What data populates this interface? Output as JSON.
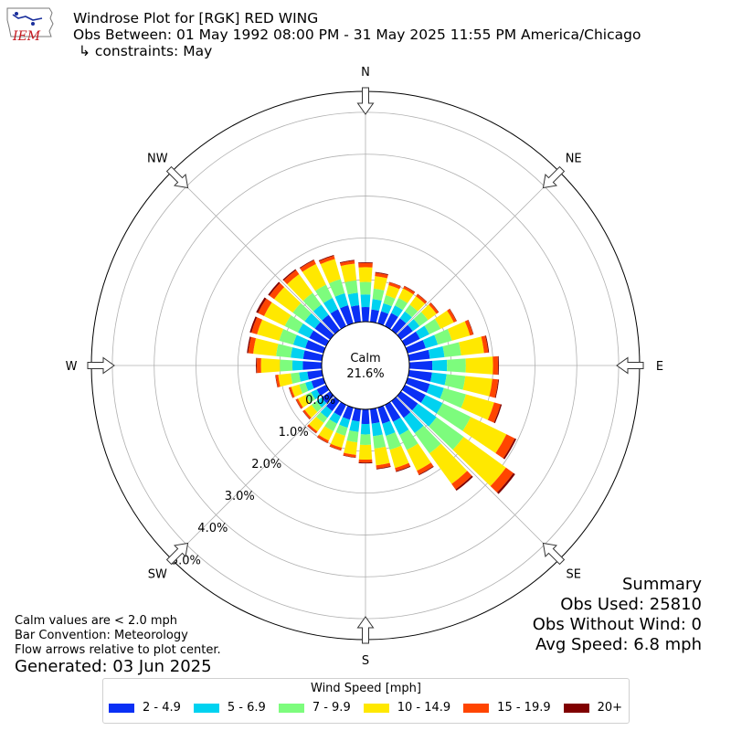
{
  "header": {
    "title": "Windrose Plot for [RGK] RED WING",
    "obs_between": "Obs Between: 01 May 1992 08:00 PM - 31 May 2025 11:55 PM America/Chicago",
    "constraints": "↳ constraints: May"
  },
  "logo": {
    "text": "IEM",
    "color": "#c4161c",
    "icon": "iowa-state-outline-logo"
  },
  "summary": {
    "title": "Summary",
    "obs_used": "Obs Used: 25810",
    "obs_without_wind": "Obs Without Wind: 0",
    "avg_speed": "Avg Speed: 6.8 mph"
  },
  "notes": {
    "calm": "Calm values are < 2.0 mph",
    "bar_convention": "Bar Convention: Meteorology",
    "flow_arrows": "Flow arrows relative to plot center.",
    "generated": "Generated: 03 Jun 2025"
  },
  "legend": {
    "title": "Wind Speed [mph]",
    "items": [
      {
        "label": "2 - 4.9",
        "color": "#0a30f5"
      },
      {
        "label": "5 - 6.9",
        "color": "#00d2f0"
      },
      {
        "label": "7 - 9.9",
        "color": "#7dfc7d"
      },
      {
        "label": "10 - 14.9",
        "color": "#ffe800"
      },
      {
        "label": "15 - 19.9",
        "color": "#ff4500"
      },
      {
        "label": "20+",
        "color": "#800000"
      }
    ]
  },
  "chart_data": {
    "type": "windrose",
    "calm_label": "Calm",
    "calm_value": "21.6%",
    "radial_unit": "percent",
    "radial_tick_labels": [
      "0.0%",
      "1.0%",
      "2.0%",
      "3.0%",
      "4.0%",
      "5.0%"
    ],
    "radial_ticks": [
      0,
      1,
      2,
      3,
      4,
      5
    ],
    "radial_max": 5.5,
    "directions": [
      "N",
      "NE",
      "E",
      "SE",
      "S",
      "SW",
      "W",
      "NW"
    ],
    "bin_directions_deg": [
      0,
      10,
      20,
      30,
      40,
      50,
      60,
      70,
      80,
      90,
      100,
      110,
      120,
      130,
      140,
      150,
      160,
      170,
      180,
      190,
      200,
      210,
      220,
      230,
      240,
      250,
      260,
      270,
      280,
      290,
      300,
      310,
      320,
      330,
      340,
      350
    ],
    "series": [
      {
        "name": "2 - 4.9",
        "values": [
          0.35,
          0.3,
          0.3,
          0.35,
          0.35,
          0.35,
          0.4,
          0.45,
          0.5,
          0.55,
          0.55,
          0.55,
          0.55,
          0.5,
          0.5,
          0.45,
          0.4,
          0.35,
          0.35,
          0.3,
          0.3,
          0.3,
          0.3,
          0.25,
          0.25,
          0.3,
          0.35,
          0.45,
          0.45,
          0.45,
          0.45,
          0.45,
          0.45,
          0.45,
          0.45,
          0.4
        ]
      },
      {
        "name": "5 - 6.9",
        "values": [
          0.3,
          0.25,
          0.2,
          0.2,
          0.2,
          0.2,
          0.25,
          0.3,
          0.35,
          0.35,
          0.35,
          0.35,
          0.45,
          0.55,
          0.45,
          0.35,
          0.3,
          0.3,
          0.25,
          0.25,
          0.2,
          0.2,
          0.2,
          0.15,
          0.15,
          0.15,
          0.2,
          0.25,
          0.3,
          0.3,
          0.3,
          0.3,
          0.3,
          0.3,
          0.3,
          0.3
        ]
      },
      {
        "name": "7 - 9.9",
        "values": [
          0.3,
          0.25,
          0.2,
          0.2,
          0.2,
          0.25,
          0.3,
          0.35,
          0.4,
          0.45,
          0.45,
          0.55,
          0.75,
          0.8,
          0.6,
          0.4,
          0.35,
          0.3,
          0.25,
          0.25,
          0.2,
          0.2,
          0.15,
          0.15,
          0.15,
          0.15,
          0.2,
          0.3,
          0.35,
          0.35,
          0.35,
          0.35,
          0.35,
          0.35,
          0.35,
          0.3
        ]
      },
      {
        "name": "10 - 14.9",
        "values": [
          0.35,
          0.3,
          0.25,
          0.25,
          0.25,
          0.25,
          0.35,
          0.45,
          0.55,
          0.65,
          0.65,
          0.7,
          0.95,
          1.25,
          0.9,
          0.55,
          0.45,
          0.4,
          0.35,
          0.3,
          0.3,
          0.25,
          0.25,
          0.2,
          0.2,
          0.2,
          0.3,
          0.45,
          0.55,
          0.55,
          0.55,
          0.55,
          0.55,
          0.55,
          0.5,
          0.4
        ]
      },
      {
        "name": "15 - 19.9",
        "values": [
          0.1,
          0.08,
          0.07,
          0.06,
          0.06,
          0.06,
          0.07,
          0.08,
          0.1,
          0.12,
          0.14,
          0.16,
          0.22,
          0.22,
          0.16,
          0.1,
          0.08,
          0.08,
          0.07,
          0.06,
          0.06,
          0.06,
          0.05,
          0.05,
          0.05,
          0.05,
          0.06,
          0.1,
          0.12,
          0.14,
          0.16,
          0.14,
          0.12,
          0.1,
          0.08,
          0.07
        ]
      },
      {
        "name": "20+",
        "values": [
          0.02,
          0.02,
          0.01,
          0.01,
          0.01,
          0.01,
          0.01,
          0.01,
          0.02,
          0.02,
          0.02,
          0.03,
          0.04,
          0.05,
          0.04,
          0.02,
          0.02,
          0.02,
          0.02,
          0.01,
          0.01,
          0.01,
          0.01,
          0.01,
          0.01,
          0.01,
          0.01,
          0.02,
          0.03,
          0.04,
          0.05,
          0.04,
          0.03,
          0.02,
          0.02,
          0.02
        ]
      }
    ]
  }
}
